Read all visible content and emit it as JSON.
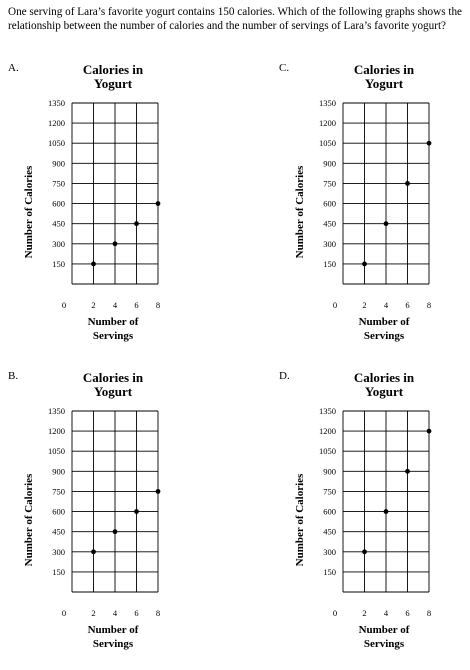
{
  "question": "One serving of Lara’s favorite yogurt contains 150 calories. Which of the following graphs shows the relationship between the number of calories and the number of servings of Lara’s favorite yogurt?",
  "chart_data": [
    {
      "letter": "A.",
      "type": "scatter",
      "title": [
        "Calories in",
        "Yogurt"
      ],
      "xlabel": [
        "Number of",
        "Servings"
      ],
      "ylabel": "Number of Calories",
      "xlim": [
        0,
        8
      ],
      "ylim": [
        0,
        1350
      ],
      "xticks": [
        "0",
        "2",
        "4",
        "6",
        "8"
      ],
      "yticks": [
        "1350",
        "1200",
        "1050",
        "900",
        "750",
        "600",
        "450",
        "300",
        "150"
      ],
      "grid": true,
      "points": [
        {
          "x": 2,
          "y": 150
        },
        {
          "x": 4,
          "y": 300
        },
        {
          "x": 6,
          "y": 450
        },
        {
          "x": 8,
          "y": 600
        }
      ]
    },
    {
      "letter": "C.",
      "type": "scatter",
      "title": [
        "Calories in",
        "Yogurt"
      ],
      "xlabel": [
        "Number of",
        "Servings"
      ],
      "ylabel": "Number of Calories",
      "xlim": [
        0,
        8
      ],
      "ylim": [
        0,
        1350
      ],
      "xticks": [
        "0",
        "2",
        "4",
        "6",
        "8"
      ],
      "yticks": [
        "1350",
        "1200",
        "1050",
        "900",
        "750",
        "600",
        "450",
        "300",
        "150"
      ],
      "grid": true,
      "points": [
        {
          "x": 2,
          "y": 150
        },
        {
          "x": 4,
          "y": 450
        },
        {
          "x": 6,
          "y": 750
        },
        {
          "x": 8,
          "y": 1050
        }
      ]
    },
    {
      "letter": "B.",
      "type": "scatter",
      "title": [
        "Calories in",
        "Yogurt"
      ],
      "xlabel": [
        "Number of",
        "Servings"
      ],
      "ylabel": "Number of Calories",
      "xlim": [
        0,
        8
      ],
      "ylim": [
        0,
        1350
      ],
      "xticks": [
        "0",
        "2",
        "4",
        "6",
        "8"
      ],
      "yticks": [
        "1350",
        "1200",
        "1050",
        "900",
        "750",
        "600",
        "450",
        "300",
        "150"
      ],
      "grid": true,
      "points": [
        {
          "x": 2,
          "y": 300
        },
        {
          "x": 4,
          "y": 450
        },
        {
          "x": 6,
          "y": 600
        },
        {
          "x": 8,
          "y": 750
        }
      ]
    },
    {
      "letter": "D.",
      "type": "scatter",
      "title": [
        "Calories in",
        "Yogurt"
      ],
      "xlabel": [
        "Number of",
        "Servings"
      ],
      "ylabel": "Number of Calories",
      "xlim": [
        0,
        8
      ],
      "ylim": [
        0,
        1350
      ],
      "xticks": [
        "0",
        "2",
        "4",
        "6",
        "8"
      ],
      "yticks": [
        "1350",
        "1200",
        "1050",
        "900",
        "750",
        "600",
        "450",
        "300",
        "150"
      ],
      "grid": true,
      "points": [
        {
          "x": 2,
          "y": 300
        },
        {
          "x": 4,
          "y": 600
        },
        {
          "x": 6,
          "y": 900
        },
        {
          "x": 8,
          "y": 1200
        }
      ]
    }
  ]
}
